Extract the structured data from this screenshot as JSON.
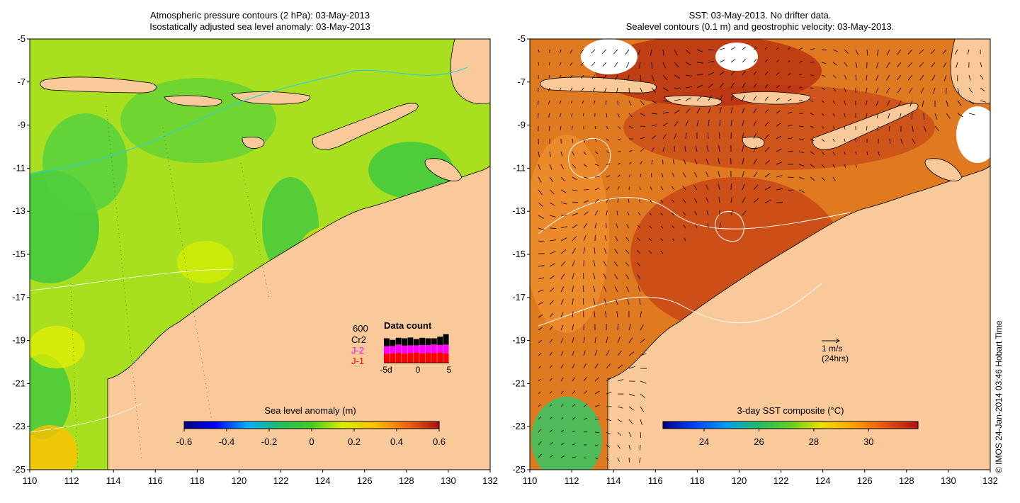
{
  "left_panel": {
    "title_line1": "Atmospheric pressure contours (2 hPa): 03-May-2013",
    "title_line2": "Isostatically adjusted sea level anomaly: 03-May-2013",
    "colorbar": {
      "label": "Sea level anomaly (m)",
      "ticks": [
        "-0.6",
        "-0.4",
        "-0.2",
        "0",
        "0.2",
        "0.4",
        "0.6"
      ],
      "range": [
        -0.6,
        0.6
      ]
    },
    "data_count": {
      "title": "Data count",
      "max_label": "600",
      "legend": [
        {
          "label": "Cr2",
          "color": "#000000"
        },
        {
          "label": "J-2",
          "color": "#ff00ff"
        },
        {
          "label": "J-1",
          "color": "#ff0000"
        }
      ],
      "x_ticks": [
        "-5d",
        "0",
        "5"
      ],
      "days": [
        -5,
        -4,
        -3,
        -2,
        -1,
        0,
        1,
        2,
        3,
        4,
        5
      ],
      "j1": [
        170,
        180,
        190,
        175,
        185,
        195,
        180,
        190,
        185,
        200,
        180
      ],
      "j2": [
        150,
        140,
        160,
        155,
        150,
        140,
        160,
        150,
        165,
        140,
        170
      ],
      "cr2": [
        150,
        120,
        130,
        140,
        150,
        120,
        140,
        130,
        120,
        160,
        200
      ]
    }
  },
  "right_panel": {
    "title_line1": "SST: 03-May-2013. No drifter data.",
    "title_line2": "Sealevel contours (0.1 m) and geostrophic velocity: 03-May-2013.",
    "colorbar": {
      "label": "3-day SST composite (°C)",
      "ticks": [
        "24",
        "26",
        "28",
        "30"
      ],
      "range": [
        22.5,
        31.8
      ]
    },
    "velocity_scale": {
      "line1": "1 m/s",
      "line2": "(24hrs)"
    }
  },
  "axes": {
    "x_ticks": [
      "110",
      "112",
      "114",
      "116",
      "118",
      "120",
      "122",
      "124",
      "126",
      "128",
      "130",
      "132"
    ],
    "y_ticks": [
      "-5",
      "-7",
      "-9",
      "-11",
      "-13",
      "-15",
      "-17",
      "-19",
      "-21",
      "-23",
      "-25"
    ]
  },
  "copyright": "© IMOS 24-Jan-2014 03:46 Hobart Time",
  "colors": {
    "land": "#f9c99a",
    "sla_base": "#a8e020",
    "sst_base": "#e07a20"
  }
}
